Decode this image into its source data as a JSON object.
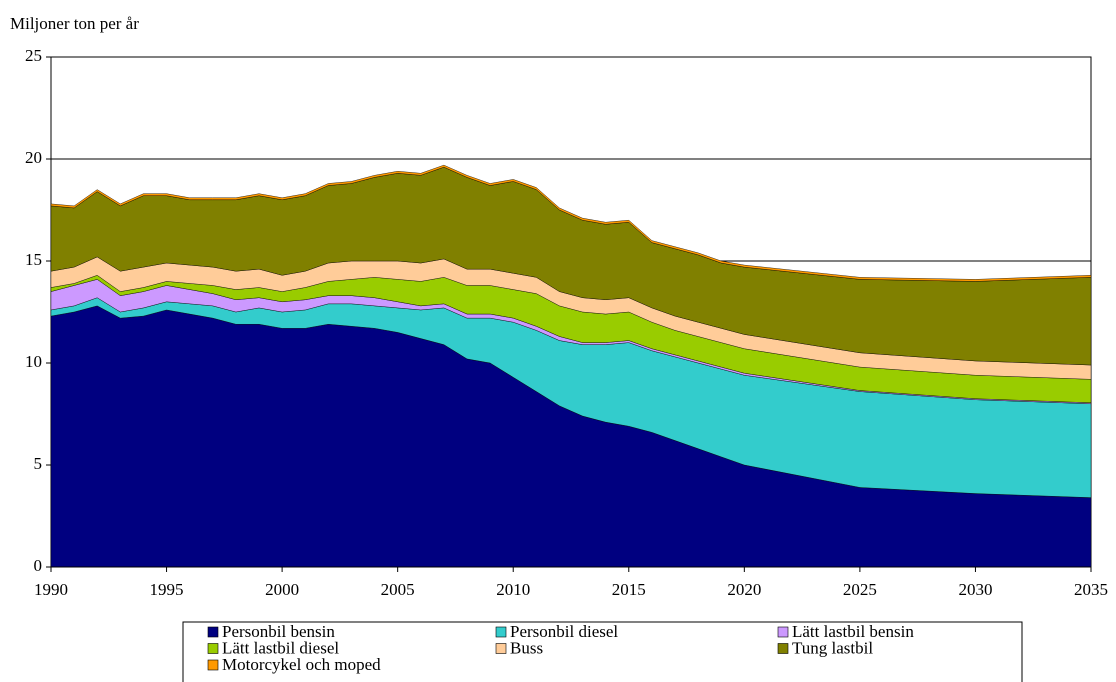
{
  "chart_data": {
    "type": "stacked-area",
    "y_label": "Miljoner ton per år",
    "x": [
      1990,
      1991,
      1992,
      1993,
      1994,
      1995,
      1996,
      1997,
      1998,
      1999,
      2000,
      2001,
      2002,
      2003,
      2004,
      2005,
      2006,
      2007,
      2008,
      2009,
      2010,
      2011,
      2012,
      2013,
      2014,
      2015,
      2016,
      2017,
      2018,
      2019,
      2020,
      2025,
      2030,
      2035
    ],
    "xlim": [
      1990,
      2035
    ],
    "xticks": [
      1990,
      1995,
      2000,
      2005,
      2010,
      2015,
      2020,
      2025,
      2030,
      2035
    ],
    "ylim": [
      0,
      25
    ],
    "yticks": [
      0,
      5,
      10,
      15,
      20,
      25
    ],
    "grid": true,
    "series": [
      {
        "name": "Personbil bensin",
        "color": "#000080",
        "values": [
          12.3,
          12.5,
          12.8,
          12.2,
          12.3,
          12.6,
          12.4,
          12.2,
          11.9,
          11.9,
          11.7,
          11.7,
          11.9,
          11.8,
          11.7,
          11.5,
          11.2,
          10.9,
          10.2,
          10.0,
          9.3,
          8.6,
          7.9,
          7.4,
          7.1,
          6.9,
          6.6,
          6.2,
          5.8,
          5.4,
          5.0,
          3.9,
          3.6,
          3.4
        ]
      },
      {
        "name": "Personbil diesel",
        "color": "#33CCCC",
        "values": [
          0.3,
          0.3,
          0.4,
          0.3,
          0.4,
          0.4,
          0.5,
          0.6,
          0.6,
          0.8,
          0.8,
          0.9,
          1.0,
          1.1,
          1.1,
          1.2,
          1.4,
          1.8,
          2.0,
          2.2,
          2.7,
          3.0,
          3.2,
          3.5,
          3.8,
          4.1,
          4.0,
          4.1,
          4.2,
          4.3,
          4.4,
          4.7,
          4.6,
          4.6
        ]
      },
      {
        "name": "Lätt lastbil bensin",
        "color": "#CC99FF",
        "values": [
          0.9,
          1.0,
          0.9,
          0.8,
          0.8,
          0.8,
          0.7,
          0.6,
          0.6,
          0.5,
          0.5,
          0.5,
          0.4,
          0.4,
          0.4,
          0.3,
          0.2,
          0.2,
          0.2,
          0.2,
          0.2,
          0.2,
          0.2,
          0.1,
          0.1,
          0.1,
          0.1,
          0.1,
          0.1,
          0.1,
          0.1,
          0.05,
          0.05,
          0.05
        ]
      },
      {
        "name": "Lätt lastbil diesel",
        "color": "#99CC00",
        "values": [
          0.2,
          0.1,
          0.2,
          0.2,
          0.2,
          0.2,
          0.3,
          0.4,
          0.5,
          0.5,
          0.5,
          0.6,
          0.7,
          0.8,
          1.0,
          1.1,
          1.2,
          1.3,
          1.4,
          1.4,
          1.4,
          1.6,
          1.5,
          1.5,
          1.4,
          1.4,
          1.3,
          1.2,
          1.2,
          1.2,
          1.2,
          1.15,
          1.15,
          1.15
        ]
      },
      {
        "name": "Buss",
        "color": "#FFCC99",
        "values": [
          0.8,
          0.8,
          0.9,
          1.0,
          1.0,
          0.9,
          0.9,
          0.9,
          0.9,
          0.9,
          0.8,
          0.8,
          0.9,
          0.9,
          0.8,
          0.9,
          0.9,
          0.9,
          0.8,
          0.8,
          0.8,
          0.8,
          0.7,
          0.7,
          0.7,
          0.7,
          0.7,
          0.7,
          0.7,
          0.7,
          0.7,
          0.7,
          0.7,
          0.7
        ]
      },
      {
        "name": "Tung lastbil",
        "color": "#808000",
        "values": [
          3.2,
          2.9,
          3.2,
          3.2,
          3.5,
          3.3,
          3.2,
          3.3,
          3.5,
          3.6,
          3.7,
          3.7,
          3.8,
          3.8,
          4.1,
          4.3,
          4.3,
          4.5,
          4.5,
          4.1,
          4.5,
          4.3,
          4.0,
          3.8,
          3.7,
          3.7,
          3.2,
          3.3,
          3.3,
          3.2,
          3.3,
          3.6,
          3.9,
          4.3
        ]
      },
      {
        "name": "Motorcykel och moped",
        "color": "#FF9900",
        "values": [
          0.1,
          0.1,
          0.1,
          0.1,
          0.1,
          0.1,
          0.1,
          0.1,
          0.1,
          0.1,
          0.1,
          0.1,
          0.1,
          0.1,
          0.1,
          0.1,
          0.1,
          0.1,
          0.1,
          0.1,
          0.1,
          0.1,
          0.1,
          0.1,
          0.1,
          0.1,
          0.1,
          0.1,
          0.1,
          0.1,
          0.1,
          0.1,
          0.1,
          0.1
        ]
      }
    ]
  }
}
